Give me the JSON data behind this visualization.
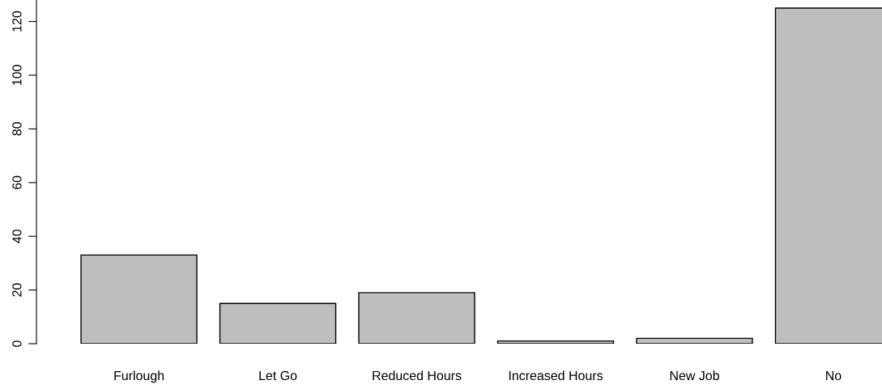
{
  "chart_data": {
    "type": "bar",
    "categories": [
      "Furlough",
      "Let Go",
      "Reduced Hours",
      "Increased Hours",
      "New Job",
      "No"
    ],
    "values": [
      33,
      15,
      19,
      1,
      2,
      125
    ],
    "color": "#bebebe",
    "ylim": [
      0,
      128
    ],
    "yticks": [
      0,
      20,
      40,
      60,
      80,
      100,
      120
    ],
    "grid": false
  }
}
